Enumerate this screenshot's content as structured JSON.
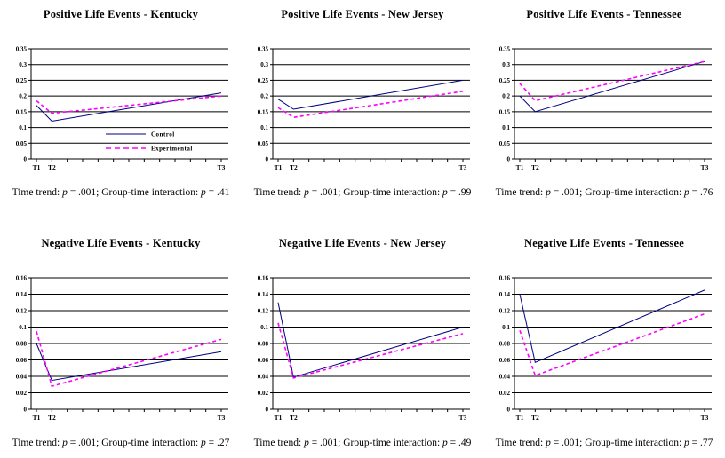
{
  "figure": {
    "background": "#ffffff",
    "series_colors": {
      "control": "#000080",
      "experimental": "#ff00ff"
    },
    "grid_color": "#000000",
    "axis_color": "#000000"
  },
  "legend": {
    "items": [
      {
        "label": "Control",
        "color": "#000080",
        "line_style": "solid"
      },
      {
        "label": "Experimental",
        "color": "#ff00ff",
        "line_style": "dashed"
      }
    ]
  },
  "chart_data": [
    {
      "type": "line",
      "title": "Positive Life Events - Kentucky",
      "x": [
        0,
        1,
        12
      ],
      "x_labels": [
        "T1",
        "T2",
        "T3"
      ],
      "xlim": [
        0,
        12
      ],
      "ylim": [
        0,
        0.35
      ],
      "ytick_values": [
        0.35,
        0.3,
        0.25,
        0.2,
        0.15,
        0.1,
        0.05,
        0
      ],
      "ytick_labels": [
        "0.35",
        "0.3",
        "0.25",
        "0.2",
        "0.15",
        "0.1",
        "0.05",
        "0"
      ],
      "grid": true,
      "legend_position": "inside-right",
      "show_legend": true,
      "series": [
        {
          "name": "Control",
          "values": [
            0.17,
            0.12,
            0.21
          ],
          "color": "#000080",
          "line_style": "solid"
        },
        {
          "name": "Experimental",
          "values": [
            0.185,
            0.145,
            0.2
          ],
          "color": "#ff00ff",
          "line_style": "dashed"
        }
      ],
      "caption": "Time trend: p = .001; Group-time interaction: p = .41"
    },
    {
      "type": "line",
      "title": "Positive Life Events - New Jersey",
      "x": [
        0,
        1,
        12
      ],
      "x_labels": [
        "T1",
        "T2",
        "T3"
      ],
      "xlim": [
        0,
        12
      ],
      "ylim": [
        0,
        0.35
      ],
      "ytick_values": [
        0.35,
        0.3,
        0.25,
        0.2,
        0.15,
        0.1,
        0.05,
        0
      ],
      "ytick_labels": [
        "0.35",
        "0.3",
        "0.25",
        "0.2",
        "0.15",
        "0.1",
        "0.05",
        "0"
      ],
      "grid": true,
      "show_legend": false,
      "series": [
        {
          "name": "Control",
          "values": [
            0.19,
            0.158,
            0.25
          ],
          "color": "#000080",
          "line_style": "solid"
        },
        {
          "name": "Experimental",
          "values": [
            0.163,
            0.132,
            0.215
          ],
          "color": "#ff00ff",
          "line_style": "dashed"
        }
      ],
      "caption": "Time trend: p = .001; Group-time interaction: p = .99"
    },
    {
      "type": "line",
      "title": "Positive Life Events - Tennessee",
      "x": [
        0,
        1,
        12
      ],
      "x_labels": [
        "T1",
        "T2",
        "T3"
      ],
      "xlim": [
        0,
        12
      ],
      "ylim": [
        0,
        0.35
      ],
      "ytick_values": [
        0.35,
        0.3,
        0.25,
        0.2,
        0.15,
        0.1,
        0.05,
        0
      ],
      "ytick_labels": [
        "0.35",
        "0.3",
        "0.25",
        "0.2",
        "0.15",
        "0.1",
        "0.05",
        "0"
      ],
      "grid": true,
      "show_legend": false,
      "series": [
        {
          "name": "Control",
          "values": [
            0.2,
            0.15,
            0.31
          ],
          "color": "#000080",
          "line_style": "solid"
        },
        {
          "name": "Experimental",
          "values": [
            0.24,
            0.185,
            0.31
          ],
          "color": "#ff00ff",
          "line_style": "dashed"
        }
      ],
      "caption": "Time trend: p = .001; Group-time interaction: p = .76"
    },
    {
      "type": "line",
      "title": "Negative Life Events - Kentucky",
      "x": [
        0,
        1,
        12
      ],
      "x_labels": [
        "T1",
        "T2",
        "T3"
      ],
      "xlim": [
        0,
        12
      ],
      "ylim": [
        0,
        0.16
      ],
      "ytick_values": [
        0.16,
        0.14,
        0.12,
        0.1,
        0.08,
        0.06,
        0.04,
        0.02,
        0
      ],
      "ytick_labels": [
        "0.16",
        "0.14",
        "0.12",
        "0.1",
        "0.08",
        "0.06",
        "0.04",
        "0.02",
        "0"
      ],
      "grid": true,
      "show_legend": false,
      "series": [
        {
          "name": "Control",
          "values": [
            0.08,
            0.035,
            0.07
          ],
          "color": "#000080",
          "line_style": "solid"
        },
        {
          "name": "Experimental",
          "values": [
            0.095,
            0.028,
            0.085
          ],
          "color": "#ff00ff",
          "line_style": "dashed"
        }
      ],
      "caption": "Time trend: p = .001; Group-time interaction: p = .27"
    },
    {
      "type": "line",
      "title": "Negative Life Events - New Jersey",
      "x": [
        0,
        1,
        12
      ],
      "x_labels": [
        "T1",
        "T2",
        "T3"
      ],
      "xlim": [
        0,
        12
      ],
      "ylim": [
        0,
        0.16
      ],
      "ytick_values": [
        0.16,
        0.14,
        0.12,
        0.1,
        0.08,
        0.06,
        0.04,
        0.02,
        0
      ],
      "ytick_labels": [
        "0.16",
        "0.14",
        "0.12",
        "0.1",
        "0.08",
        "0.06",
        "0.04",
        "0.02",
        "0"
      ],
      "grid": true,
      "show_legend": false,
      "series": [
        {
          "name": "Control",
          "values": [
            0.13,
            0.039,
            0.1
          ],
          "color": "#000080",
          "line_style": "solid"
        },
        {
          "name": "Experimental",
          "values": [
            0.105,
            0.038,
            0.092
          ],
          "color": "#ff00ff",
          "line_style": "dashed"
        }
      ],
      "caption": "Time trend: p = .001; Group-time interaction: p = .49"
    },
    {
      "type": "line",
      "title": "Negative Life Events - Tennessee",
      "x": [
        0,
        1,
        12
      ],
      "x_labels": [
        "T1",
        "T2",
        "T3"
      ],
      "xlim": [
        0,
        12
      ],
      "ylim": [
        0,
        0.16
      ],
      "ytick_values": [
        0.16,
        0.14,
        0.12,
        0.1,
        0.08,
        0.06,
        0.04,
        0.02,
        0
      ],
      "ytick_labels": [
        "0.16",
        "0.14",
        "0.12",
        "0.1",
        "0.08",
        "0.06",
        "0.04",
        "0.02",
        "0"
      ],
      "grid": true,
      "show_legend": false,
      "series": [
        {
          "name": "Control",
          "values": [
            0.14,
            0.057,
            0.145
          ],
          "color": "#000080",
          "line_style": "solid"
        },
        {
          "name": "Experimental",
          "values": [
            0.096,
            0.041,
            0.116
          ],
          "color": "#ff00ff",
          "line_style": "dashed"
        }
      ],
      "caption": "Time trend: p = .001; Group-time interaction: p = .77"
    }
  ]
}
